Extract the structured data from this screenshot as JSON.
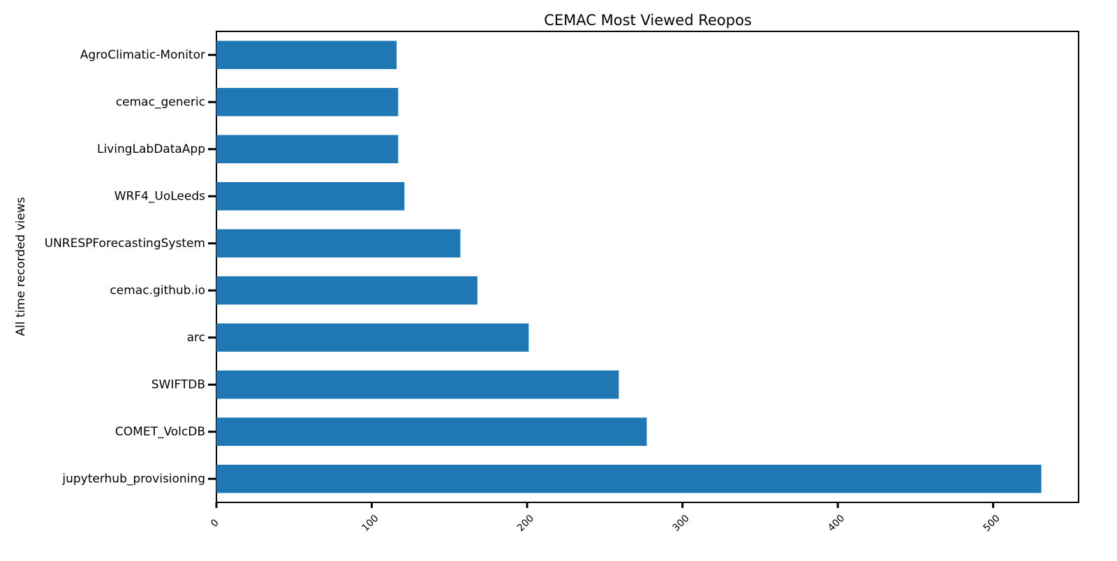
{
  "chart_data": {
    "type": "barh",
    "title": "CEMAC Most Viewed Reopos",
    "ylabel": "All time recorded views",
    "categories": [
      "AgroClimatic-Monitor",
      "cemac_generic",
      "LivingLabDataApp",
      "WRF4_UoLeeds",
      "UNRESPForecastingSystem",
      "cemac.github.io",
      "arc",
      "SWIFTDB",
      "COMET_VolcDB",
      "jupyterhub_provisioning"
    ],
    "values": [
      116,
      117,
      117,
      121,
      157,
      168,
      201,
      259,
      277,
      531
    ],
    "color": "#1f77b4",
    "xlim": [
      0,
      555
    ],
    "xticks": [
      0,
      100,
      200,
      300,
      400,
      500
    ],
    "grid": false
  }
}
